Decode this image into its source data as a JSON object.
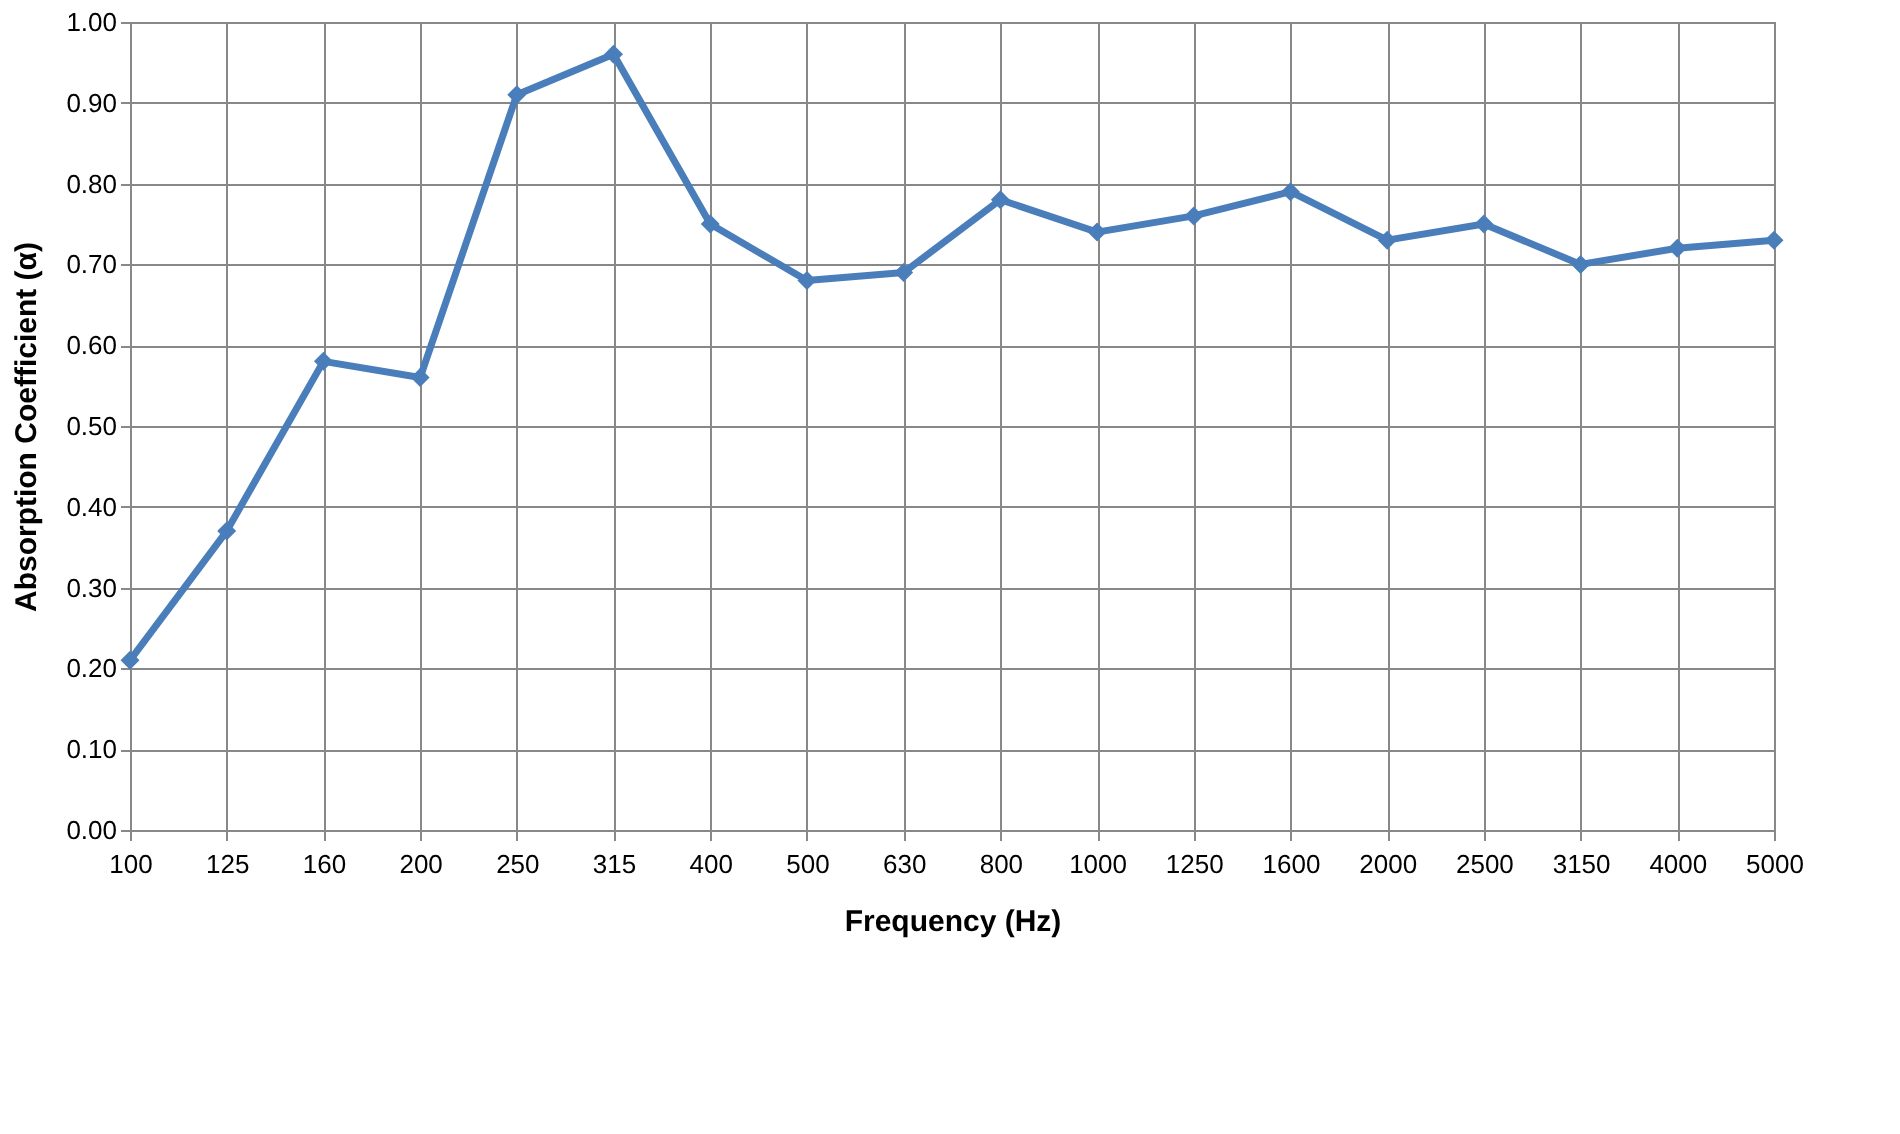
{
  "chart_data": {
    "type": "line",
    "xlabel": "Frequency (Hz)",
    "ylabel": "Absorption Coefficient (α)",
    "categories": [
      "100",
      "125",
      "160",
      "200",
      "250",
      "315",
      "400",
      "500",
      "630",
      "800",
      "1000",
      "1250",
      "1600",
      "2000",
      "2500",
      "3150",
      "4000",
      "5000"
    ],
    "series": [
      {
        "color": "#4a7ebb",
        "values": [
          0.21,
          0.37,
          0.58,
          0.56,
          0.91,
          0.96,
          0.75,
          0.68,
          0.69,
          0.78,
          0.74,
          0.76,
          0.79,
          0.73,
          0.75,
          0.7,
          0.72,
          0.73
        ]
      }
    ],
    "ylim": [
      0,
      1
    ],
    "yticks": [
      {
        "value": 0,
        "label": "0.00"
      },
      {
        "value": 0.1,
        "label": "0.10"
      },
      {
        "value": 0.2,
        "label": "0.20"
      },
      {
        "value": 0.3,
        "label": "0.30"
      },
      {
        "value": 0.4,
        "label": "0.40"
      },
      {
        "value": 0.5,
        "label": "0.50"
      },
      {
        "value": 0.6,
        "label": "0.60"
      },
      {
        "value": 0.7,
        "label": "0.70"
      },
      {
        "value": 0.8,
        "label": "0.80"
      },
      {
        "value": 0.9,
        "label": "0.90"
      },
      {
        "value": 1,
        "label": "1.00"
      }
    ],
    "grid": true,
    "marker": "diamond",
    "line_style": "solid",
    "legend": false
  }
}
